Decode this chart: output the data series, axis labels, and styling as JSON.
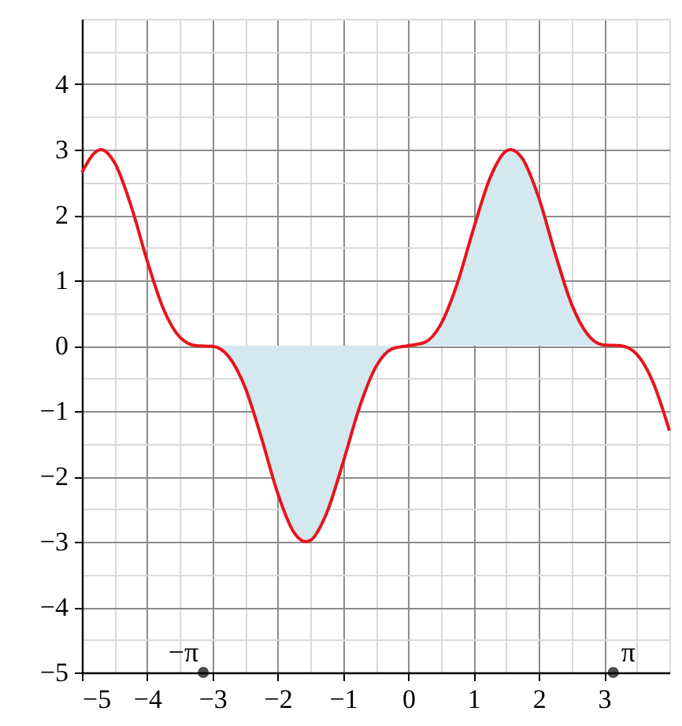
{
  "chart_data": {
    "type": "line",
    "xlim": [
      -5,
      4
    ],
    "ylim": [
      -5,
      5
    ],
    "xticks": [
      -5,
      {
        "value": -4.5,
        "label": null
      },
      -4,
      {
        "value": -3.5,
        "label": null
      },
      -3,
      {
        "value": -2.5,
        "label": null
      },
      -2,
      {
        "value": -1.5,
        "label": null
      },
      -1,
      {
        "value": -0.5,
        "label": null
      },
      0,
      {
        "value": 0.5,
        "label": null
      },
      1,
      {
        "value": 1.5,
        "label": null
      },
      2,
      {
        "value": 2.5,
        "label": null
      },
      3,
      {
        "value": 3.5,
        "label": null
      },
      {
        "value": 4,
        "label": null
      }
    ],
    "yticks": [
      -5,
      {
        "value": -4.5,
        "label": null
      },
      -4,
      {
        "value": -3.5,
        "label": null
      },
      -3,
      {
        "value": -2.5,
        "label": null
      },
      -2,
      {
        "value": -1.5,
        "label": null
      },
      -1,
      {
        "value": -0.5,
        "label": null
      },
      0,
      {
        "value": 0.5,
        "label": null
      },
      1,
      {
        "value": 1.5,
        "label": null
      },
      2,
      {
        "value": 2.5,
        "label": null
      },
      3,
      {
        "value": 3.5,
        "label": null
      },
      4,
      {
        "value": 4.5,
        "label": null
      },
      {
        "value": 5,
        "label": null
      }
    ],
    "grid": true,
    "series": [
      {
        "type": "area",
        "color": "#d4e8ef",
        "x": [
          -3.14,
          -3,
          -2.75,
          -2.5,
          -2.25,
          -2,
          -1.75,
          -1.57,
          -1.5,
          -1.25,
          -1,
          -0.75,
          -0.5,
          -0.25,
          0,
          0.25,
          0.5,
          0.75,
          1,
          1.25,
          1.5,
          1.57,
          1.75,
          2,
          2.25,
          2.5,
          2.75,
          3,
          3.14
        ],
        "values": [
          0,
          -0.01,
          -0.17,
          -0.64,
          -1.41,
          -2.26,
          -2.86,
          -3,
          -2.98,
          -2.56,
          -1.79,
          -0.95,
          -0.33,
          -0.05,
          0,
          0.05,
          0.33,
          0.95,
          1.79,
          2.56,
          2.98,
          3,
          2.86,
          2.26,
          1.41,
          0.64,
          0.17,
          0.01,
          0
        ]
      },
      {
        "color": "#e8141c",
        "x": [
          -5,
          -4.75,
          -4.71,
          -4.5,
          -4.25,
          -4,
          -3.75,
          -3.5,
          -3.25,
          -3,
          -2.75,
          -2.5,
          -2.25,
          -2,
          -1.75,
          -1.57,
          -1.5,
          -1.25,
          -1,
          -0.75,
          -0.5,
          -0.25,
          0,
          0.25,
          0.5,
          0.75,
          1,
          1.25,
          1.5,
          1.57,
          1.75,
          2,
          2.25,
          2.5,
          2.75,
          3,
          3.25,
          3.5,
          3.75,
          4
        ],
        "values": [
          2.65,
          2.99,
          3,
          2.8,
          2.15,
          1.3,
          0.56,
          0.13,
          0,
          -0.01,
          -0.17,
          -0.64,
          -1.41,
          -2.26,
          -2.86,
          -3,
          -2.98,
          -2.56,
          -1.79,
          -0.95,
          -0.33,
          -0.05,
          0,
          0.05,
          0.33,
          0.95,
          1.79,
          2.56,
          2.98,
          3,
          2.86,
          2.26,
          1.41,
          0.64,
          0.17,
          0.01,
          0,
          -0.13,
          -0.56,
          -1.3
        ]
      },
      {
        "type": "scatter",
        "color": "#000000",
        "x": [
          -3.14,
          3.14
        ],
        "values": [
          -5,
          -5
        ]
      }
    ],
    "annotations": [
      {
        "text": "−π",
        "x": -3.14,
        "y": -5
      },
      {
        "text": "π",
        "x": 3.14,
        "y": -5
      }
    ]
  }
}
